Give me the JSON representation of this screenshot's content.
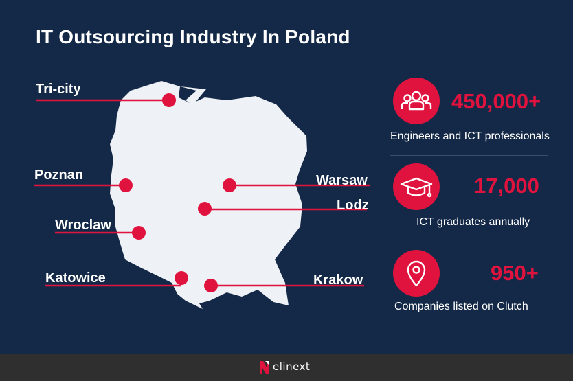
{
  "title": "IT Outsourcing Industry In Poland",
  "colors": {
    "background": "#142947",
    "accent": "#e0133e",
    "map": "#eef1f6",
    "footer": "#2f2f2f"
  },
  "cities": [
    {
      "name": "Tri-city"
    },
    {
      "name": "Poznan"
    },
    {
      "name": "Wroclaw"
    },
    {
      "name": "Katowice"
    },
    {
      "name": "Warsaw"
    },
    {
      "name": "Lodz"
    },
    {
      "name": "Krakow"
    }
  ],
  "stats": [
    {
      "icon": "people-icon",
      "value": "450,000+",
      "caption": "Engineers and ICT professionals"
    },
    {
      "icon": "graduation-cap-icon",
      "value": "17,000",
      "caption": "ICT graduates annually"
    },
    {
      "icon": "location-pin-icon",
      "value": "950+",
      "caption": "Companies listed on Clutch"
    }
  ],
  "footer": {
    "brand": "elinext"
  }
}
